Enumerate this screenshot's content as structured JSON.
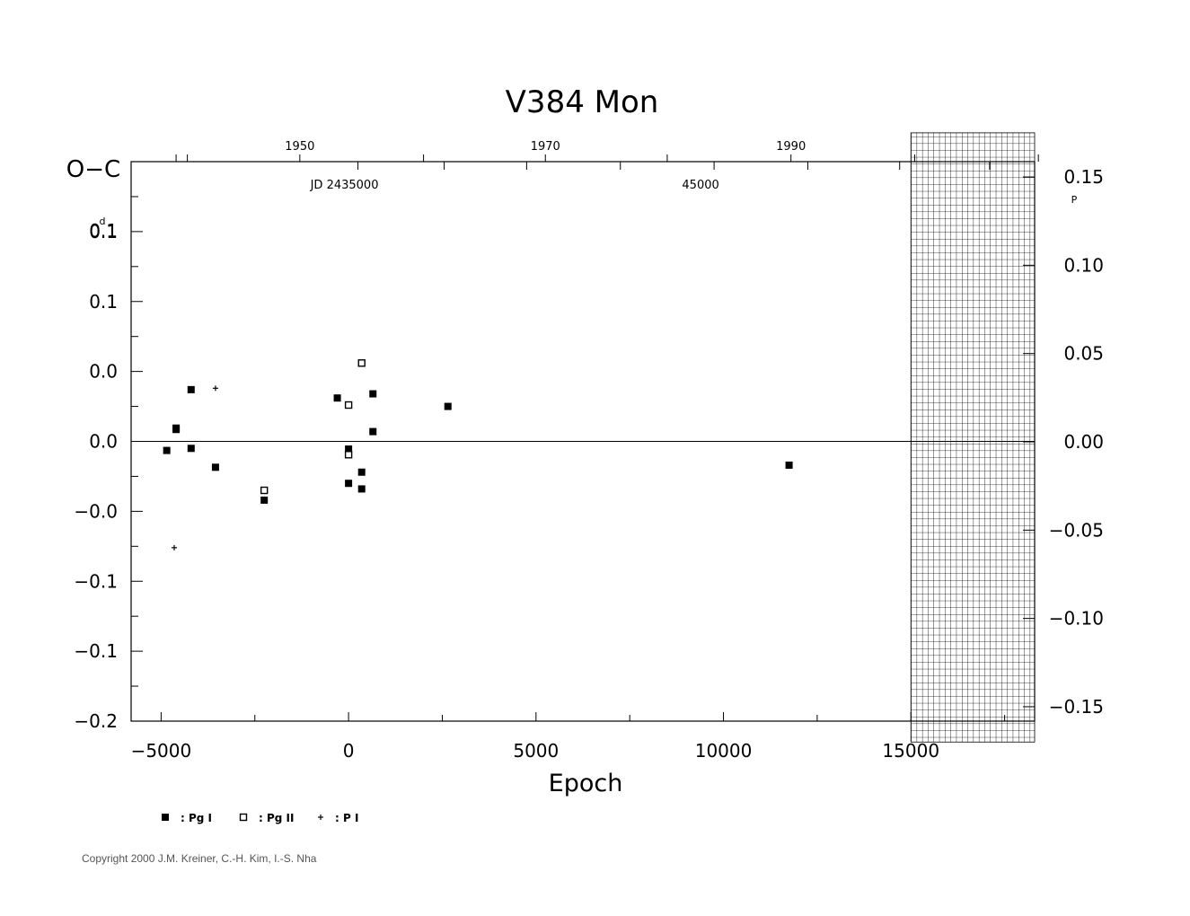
{
  "chart_data": {
    "type": "scatter",
    "title": "V384 Mon",
    "xlabel": "Epoch",
    "ylabel_left": "O−C",
    "ylabel_left_unit": "d",
    "ylabel_right_unit": "P",
    "xlim": [
      -5800,
      18300
    ],
    "ylim": [
      -0.2,
      0.2
    ],
    "x_ticks": [
      -5000,
      0,
      5000,
      10000,
      15000
    ],
    "x_tick_labels": [
      "−5000",
      "0",
      "5000",
      "10000",
      "15000"
    ],
    "y_ticks": [
      -0.2,
      -0.15,
      -0.1,
      -0.05,
      0.0,
      0.05,
      0.1,
      0.15
    ],
    "y_tick_labels": [
      "−0.2",
      "−0.1",
      "−0.1",
      "−0.0",
      "0.0",
      "0.0",
      "0.1",
      "0.1"
    ],
    "y_top_tick_label": "0.1",
    "right_ticks": [
      -0.15,
      -0.1,
      -0.05,
      0.0,
      0.05,
      0.1,
      0.15
    ],
    "right_tick_labels": [
      "−0.15",
      "−0.10",
      "−0.05",
      "0.00",
      "0.05",
      "0.10",
      "0.15"
    ],
    "right_top_tick_label": "0.15",
    "right_ylim": [
      -0.178,
      0.178
    ],
    "top_axis_years": [
      {
        "label": "1950",
        "epoch": -1300
      },
      {
        "label": "1970",
        "epoch": 5250
      },
      {
        "label": "1990",
        "epoch": 11800
      }
    ],
    "top_axis_year_ticks": [
      -4600,
      -4300,
      -1300,
      2000,
      5250,
      8500,
      11800,
      15100,
      18400
    ],
    "jd_labels": [
      {
        "label": "JD 2435000",
        "epoch": 250
      },
      {
        "label": "45000",
        "epoch": 9750
      }
    ],
    "jd_ticks": [
      250,
      2550,
      4750,
      7250,
      9750,
      12250,
      14700,
      17100
    ],
    "hatch_region": {
      "x_from": 15000,
      "x_to": 18300,
      "y_from": -0.17,
      "y_to": 0.175
    },
    "zero_line": true,
    "legend_position": "bottom-left",
    "series": [
      {
        "name": "Pg I",
        "marker": "filled-square",
        "points": [
          {
            "x": -4850,
            "y": -0.0065
          },
          {
            "x": -4600,
            "y": 0.0085
          },
          {
            "x": -4600,
            "y": 0.0095
          },
          {
            "x": -4200,
            "y": 0.037
          },
          {
            "x": -4200,
            "y": -0.005
          },
          {
            "x": -3550,
            "y": -0.0185
          },
          {
            "x": -2250,
            "y": -0.042
          },
          {
            "x": -300,
            "y": 0.031
          },
          {
            "x": 0,
            "y": -0.0055
          },
          {
            "x": 0,
            "y": -0.03
          },
          {
            "x": 350,
            "y": -0.022
          },
          {
            "x": 350,
            "y": -0.034
          },
          {
            "x": 650,
            "y": 0.034
          },
          {
            "x": 650,
            "y": 0.007
          },
          {
            "x": 2650,
            "y": 0.025
          },
          {
            "x": 11750,
            "y": -0.017
          }
        ]
      },
      {
        "name": "Pg II",
        "marker": "open-square",
        "points": [
          {
            "x": 350,
            "y": 0.056
          },
          {
            "x": 0,
            "y": 0.026
          },
          {
            "x": 0,
            "y": -0.0095
          },
          {
            "x": -2250,
            "y": -0.035
          }
        ]
      },
      {
        "name": "P I",
        "marker": "plus",
        "points": [
          {
            "x": -3550,
            "y": 0.038
          },
          {
            "x": -4650,
            "y": -0.076
          }
        ]
      }
    ],
    "legend": [
      {
        "marker": "filled-square",
        "label": ": Pg I"
      },
      {
        "marker": "open-square",
        "label": ": Pg II"
      },
      {
        "marker": "plus",
        "label": ": P I"
      }
    ]
  },
  "footer": {
    "copyright": "Copyright 2000 J.M. Kreiner, C.-H. Kim, I.-S. Nha"
  }
}
